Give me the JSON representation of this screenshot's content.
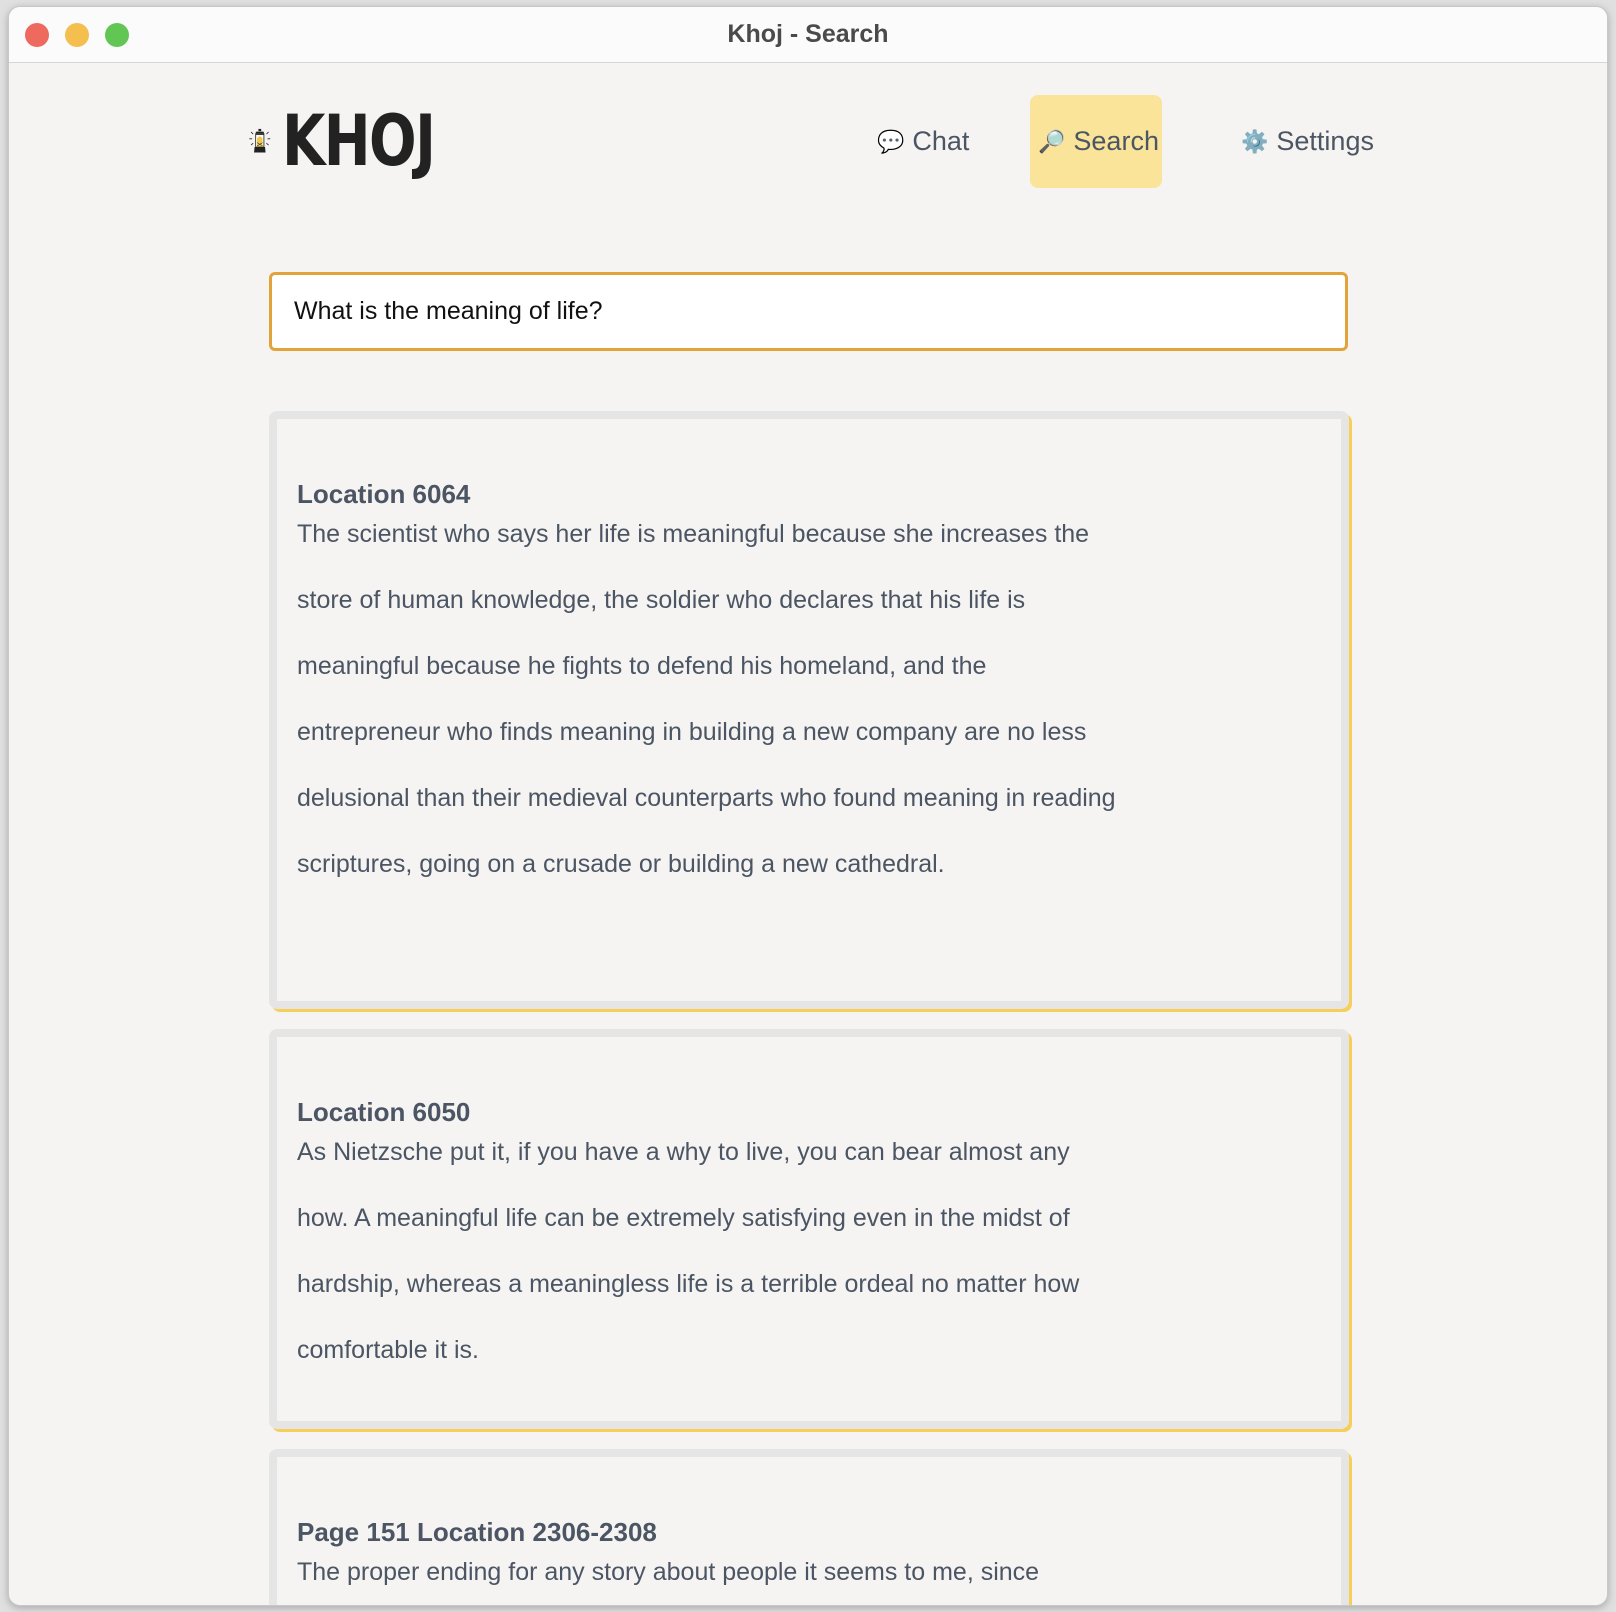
{
  "window": {
    "title": "Khoj - Search",
    "traffic_lights": [
      "#ee6a5f",
      "#f5bf4f",
      "#62c655"
    ]
  },
  "logo": {
    "text": "KHOJ",
    "icon": "lantern-icon"
  },
  "nav": [
    {
      "label": "Chat",
      "icon": "chat-bubble-icon"
    },
    {
      "label": "Search",
      "icon": "magnifier-icon",
      "active": true
    },
    {
      "label": "Settings",
      "icon": "gear-icon"
    }
  ],
  "search": {
    "value": "What is the meaning of life?"
  },
  "results": [
    {
      "title": "Location 6064",
      "text": "The scientist who says her life is meaningful because she increases the store of human knowledge, the soldier who declares that his life is meaningful because he fights to defend his homeland, and the entrepreneur who finds meaning in building a new company are no less delusional than their medieval counterparts who found meaning in reading scriptures, going on a crusade or building a new cathedral."
    },
    {
      "title": "Location 6050",
      "text": "As Nietzsche put it, if you have a why to live, you can bear almost any how. A meaningful life can be extremely satisfying even in the midst of hardship, whereas a meaningless life is a terrible ordeal no matter how comfortable it is."
    },
    {
      "title": "Page 151 Location 2306-2308",
      "text": "The proper ending for any story about people it seems to me, since"
    }
  ]
}
